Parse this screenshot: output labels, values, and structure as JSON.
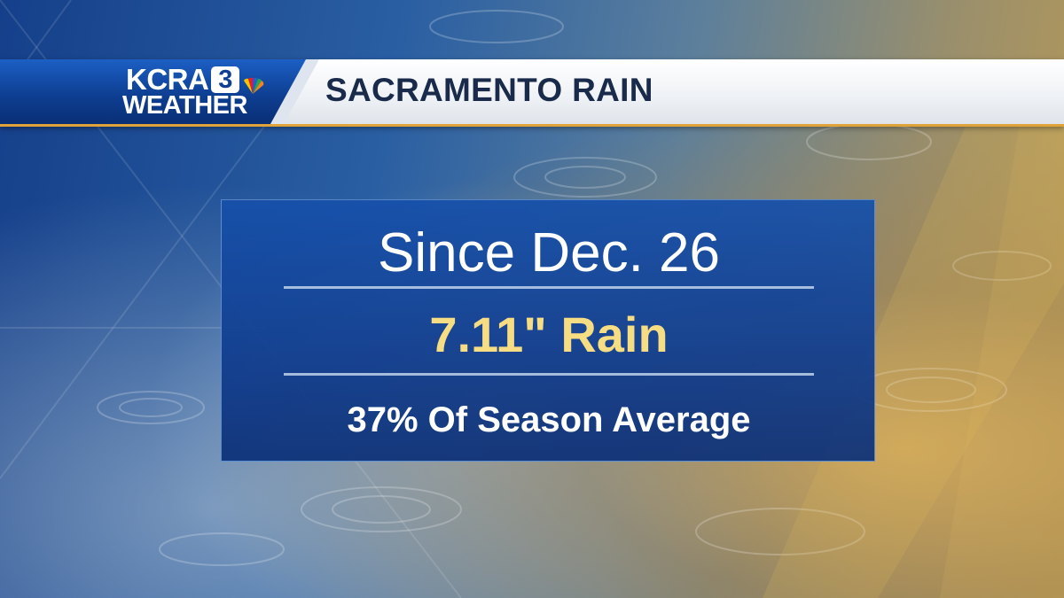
{
  "header": {
    "logo": {
      "station": "KCRA",
      "channel_number": "3",
      "subtitle": "WEATHER",
      "icon": "nbc-peacock-icon"
    },
    "title": "SACRAMENTO RAIN"
  },
  "info_box": {
    "line1": "Since Dec. 26",
    "line2": "7.11\" Rain",
    "line3": "37% Of Season Average"
  },
  "colors": {
    "brand_blue": "#0e3f93",
    "accent_gold": "#e0a33a",
    "highlight_yellow": "#f6dc82",
    "title_navy": "#1a2a4a"
  }
}
